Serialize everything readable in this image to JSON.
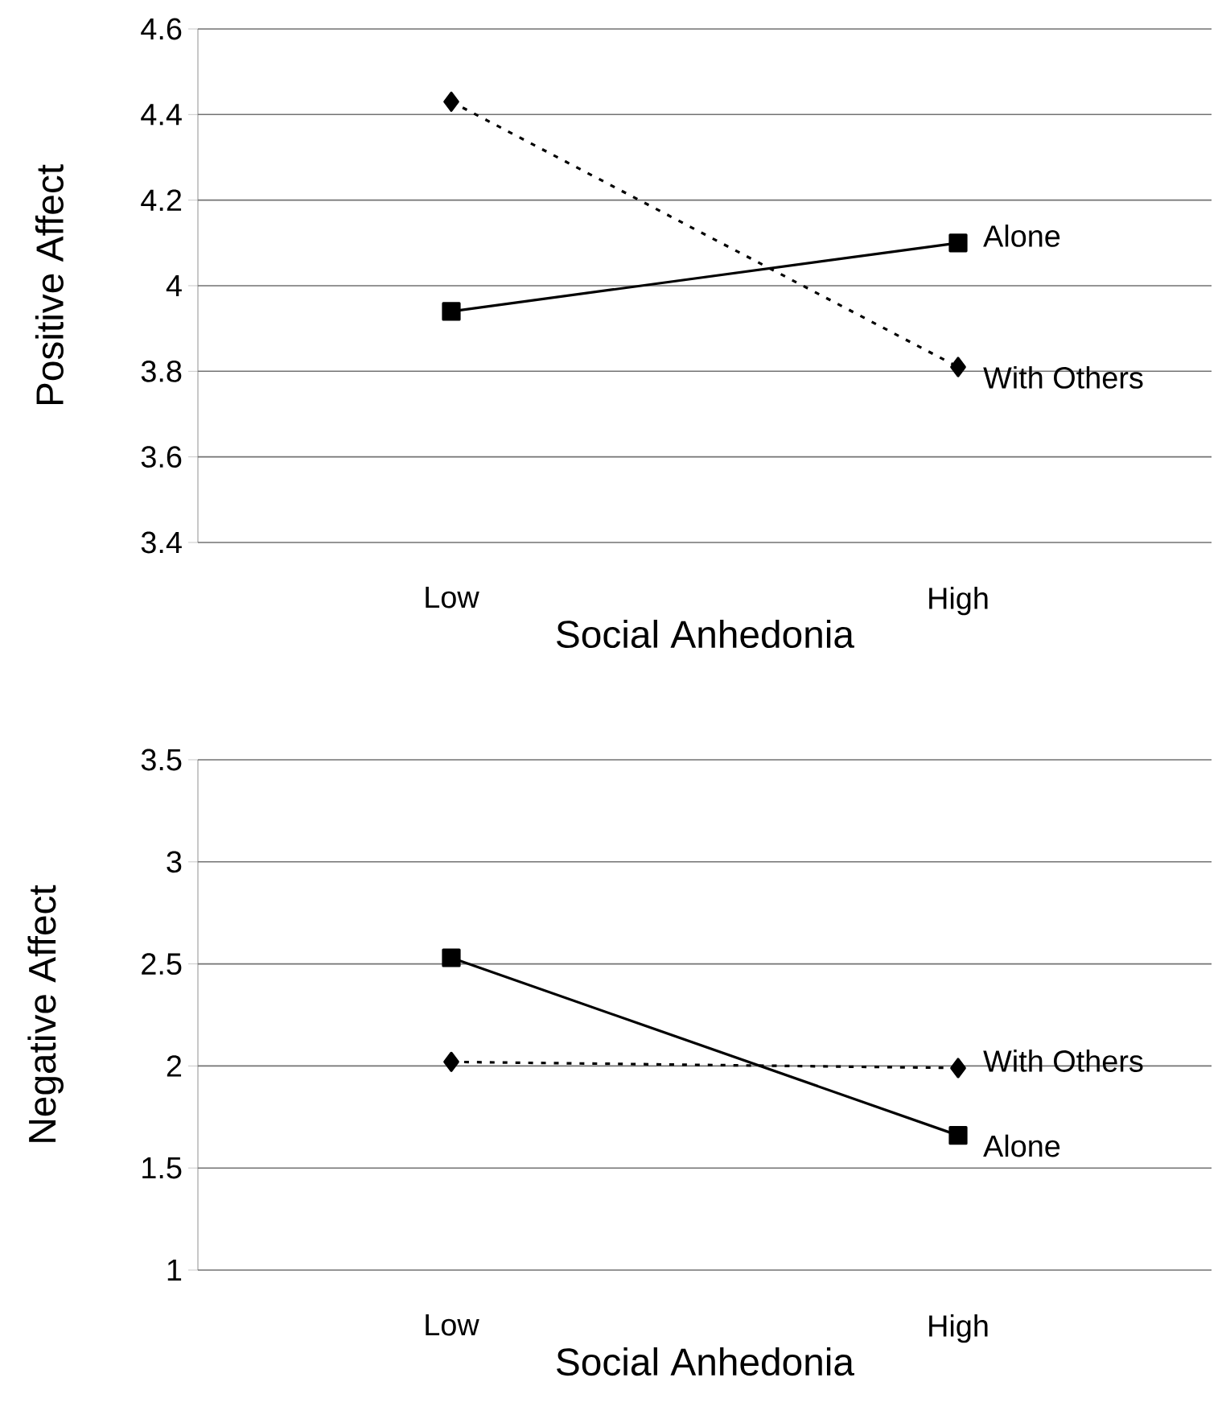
{
  "chart_data": [
    {
      "type": "line",
      "categories": [
        "Low",
        "High"
      ],
      "xlabel": "Social Anhedonia",
      "ylabel": "Positive Affect",
      "ylim": [
        3.4,
        4.6
      ],
      "yticks": [
        3.4,
        3.6,
        3.8,
        4,
        4.2,
        4.4,
        4.6
      ],
      "grid": "y",
      "legend": false,
      "series": [
        {
          "name": "Alone",
          "color": "#000000",
          "values": [
            3.94,
            4.1
          ],
          "marker": "square",
          "line_style": "solid"
        },
        {
          "name": "With Others",
          "color": "#000000",
          "values": [
            4.43,
            3.81
          ],
          "marker": "diamond",
          "line_style": "dotted"
        }
      ]
    },
    {
      "type": "line",
      "categories": [
        "Low",
        "High"
      ],
      "xlabel": "Social Anhedonia",
      "ylabel": "Negative Affect",
      "ylim": [
        1,
        3.5
      ],
      "yticks": [
        1,
        1.5,
        2,
        2.5,
        3,
        3.5
      ],
      "grid": "y",
      "legend": false,
      "series": [
        {
          "name": "Alone",
          "color": "#000000",
          "values": [
            2.53,
            1.66
          ],
          "marker": "square",
          "line_style": "solid"
        },
        {
          "name": "With Others",
          "color": "#000000",
          "values": [
            2.02,
            1.99
          ],
          "marker": "diamond",
          "line_style": "dotted"
        }
      ]
    }
  ]
}
